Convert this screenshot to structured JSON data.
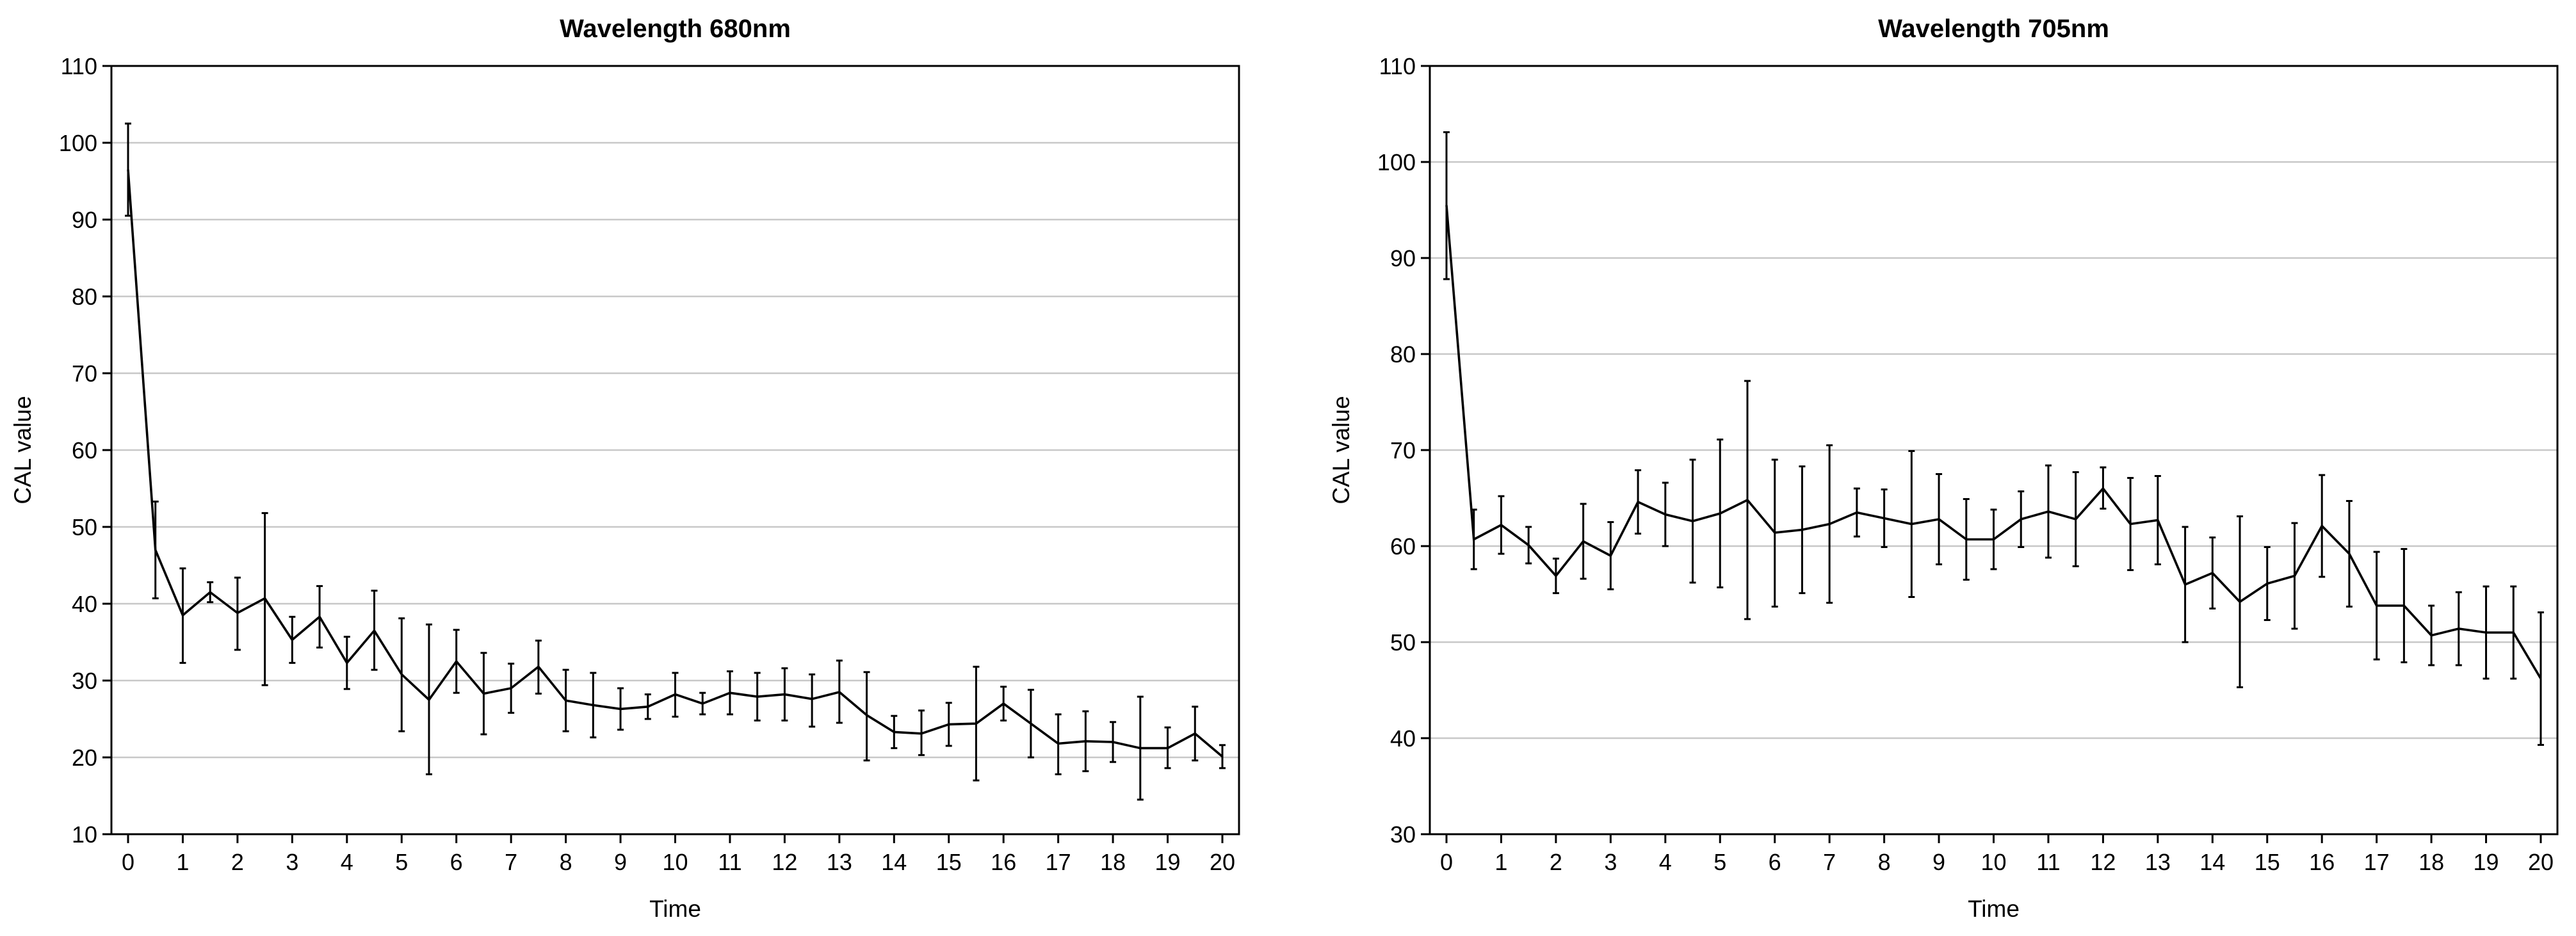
{
  "chart_data": [
    {
      "type": "line",
      "title": "Wavelength 680nm",
      "xlabel": "Time",
      "ylabel": "CAL value",
      "xlim": [
        0,
        20
      ],
      "ylim": [
        10,
        110
      ],
      "xticks": [
        0,
        1,
        2,
        3,
        4,
        5,
        6,
        7,
        8,
        9,
        10,
        11,
        12,
        13,
        14,
        15,
        16,
        17,
        18,
        19,
        20
      ],
      "yticks": [
        10,
        20,
        30,
        40,
        50,
        60,
        70,
        80,
        90,
        100,
        110
      ],
      "grid": "horizontal",
      "errorbars": true,
      "x": [
        0,
        0.5,
        1,
        1.5,
        2,
        2.5,
        3,
        3.5,
        4,
        4.5,
        5,
        5.5,
        6,
        6.5,
        7,
        7.5,
        8,
        8.5,
        9,
        9.5,
        10,
        10.5,
        11,
        11.5,
        12,
        12.5,
        13,
        13.5,
        14,
        14.5,
        15,
        15.5,
        16,
        16.5,
        17,
        17.5,
        18,
        18.5,
        19,
        19.5,
        20
      ],
      "series": [
        {
          "values": [
            96.5,
            47,
            38.5,
            41.5,
            38.8,
            40.7,
            35.3,
            38.3,
            32.3,
            36.5,
            30.8,
            27.5,
            32.5,
            28.3,
            29.0,
            31.8,
            27.4,
            26.8,
            26.3,
            26.6,
            28.2,
            27.0,
            28.4,
            27.9,
            28.2,
            27.6,
            28.5,
            25.5,
            23.3,
            23.1,
            24.3,
            24.4,
            27.0,
            24.4,
            21.8,
            22.1,
            22.0,
            21.2,
            21.2,
            23.1,
            20.1
          ],
          "err_low": [
            90.5,
            40.7,
            32.3,
            40.2,
            34.0,
            29.4,
            32.3,
            34.3,
            28.9,
            31.4,
            23.4,
            17.8,
            28.4,
            23.0,
            25.8,
            28.3,
            23.4,
            22.6,
            23.6,
            25.0,
            25.3,
            25.6,
            25.6,
            24.8,
            24.8,
            24.0,
            24.5,
            19.6,
            21.2,
            20.3,
            21.5,
            17.0,
            24.8,
            20.0,
            17.8,
            18.2,
            19.4,
            14.5,
            18.6,
            19.6,
            18.6
          ],
          "err_high": [
            102.5,
            53.3,
            44.6,
            42.8,
            43.4,
            51.8,
            38.3,
            42.3,
            35.7,
            41.7,
            38.1,
            37.3,
            36.6,
            33.6,
            32.2,
            35.2,
            31.4,
            31.0,
            29.0,
            28.2,
            31.0,
            28.4,
            31.2,
            31.0,
            31.6,
            30.8,
            32.6,
            31.1,
            25.4,
            26.1,
            27.1,
            31.8,
            29.2,
            28.8,
            25.6,
            26.0,
            24.6,
            27.9,
            23.9,
            26.6,
            21.6
          ]
        }
      ]
    },
    {
      "type": "line",
      "title": "Wavelength 705nm",
      "xlabel": "Time",
      "ylabel": "CAL value",
      "xlim": [
        0,
        20
      ],
      "ylim": [
        30,
        110
      ],
      "xticks": [
        0,
        1,
        2,
        3,
        4,
        5,
        6,
        7,
        8,
        9,
        10,
        11,
        12,
        13,
        14,
        15,
        16,
        17,
        18,
        19,
        20
      ],
      "yticks": [
        30,
        40,
        50,
        60,
        70,
        80,
        90,
        100,
        110
      ],
      "grid": "horizontal",
      "errorbars": true,
      "x": [
        0,
        0.5,
        1,
        1.5,
        2,
        2.5,
        3,
        3.5,
        4,
        4.5,
        5,
        5.5,
        6,
        6.5,
        7,
        7.5,
        8,
        8.5,
        9,
        9.5,
        10,
        10.5,
        11,
        11.5,
        12,
        12.5,
        13,
        13.5,
        14,
        14.5,
        15,
        15.5,
        16,
        16.5,
        17,
        17.5,
        18,
        18.5,
        19,
        19.5,
        20
      ],
      "series": [
        {
          "values": [
            95.5,
            60.7,
            62.2,
            60.1,
            56.9,
            60.5,
            59.0,
            64.6,
            63.3,
            62.6,
            63.4,
            64.8,
            61.4,
            61.7,
            62.3,
            63.5,
            62.9,
            62.3,
            62.8,
            60.7,
            60.7,
            62.8,
            63.6,
            62.8,
            66.0,
            62.3,
            62.7,
            56.0,
            57.2,
            54.2,
            56.1,
            56.9,
            62.1,
            59.2,
            53.8,
            53.8,
            50.7,
            51.4,
            51.0,
            51.0,
            46.2
          ],
          "err_low": [
            87.8,
            57.6,
            59.2,
            58.2,
            55.1,
            56.6,
            55.5,
            61.3,
            60.0,
            56.2,
            55.7,
            52.4,
            53.7,
            55.1,
            54.1,
            61.0,
            59.9,
            54.7,
            58.1,
            56.5,
            57.6,
            59.9,
            58.8,
            57.9,
            63.9,
            57.5,
            58.1,
            50.0,
            53.5,
            45.3,
            52.3,
            51.4,
            56.8,
            53.7,
            48.2,
            47.9,
            47.6,
            47.6,
            46.2,
            46.2,
            39.3
          ],
          "err_high": [
            103.1,
            63.8,
            65.2,
            62.0,
            58.7,
            64.4,
            62.5,
            67.9,
            66.6,
            69.0,
            71.1,
            77.2,
            69.0,
            68.3,
            70.5,
            66.0,
            65.9,
            69.9,
            67.5,
            64.9,
            63.8,
            65.7,
            68.4,
            67.7,
            68.2,
            67.1,
            67.3,
            62.0,
            60.9,
            63.1,
            59.9,
            62.4,
            67.4,
            64.7,
            59.4,
            59.7,
            53.8,
            55.2,
            55.8,
            55.8,
            53.1
          ]
        }
      ]
    }
  ]
}
